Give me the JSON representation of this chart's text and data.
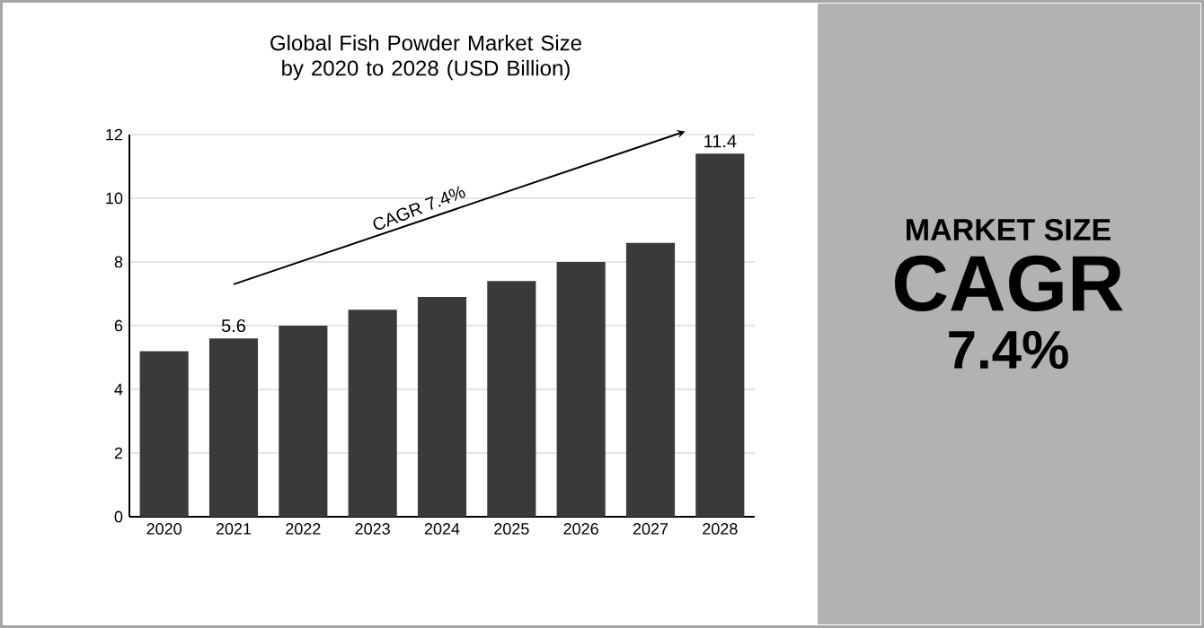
{
  "chart_data": {
    "type": "bar",
    "title": "Global Fish Powder Market Size by 2020 to 2028 (USD Billion)",
    "categories": [
      "2020",
      "2021",
      "2022",
      "2023",
      "2024",
      "2025",
      "2026",
      "2027",
      "2028"
    ],
    "values": [
      5.2,
      5.6,
      6.0,
      6.5,
      6.9,
      7.4,
      8.0,
      8.6,
      11.4
    ],
    "value_labels": [
      null,
      "5.6",
      null,
      null,
      null,
      null,
      null,
      null,
      "11.4"
    ],
    "color": "#3a3a3a",
    "ylim": [
      0,
      12
    ],
    "yticks": [
      0,
      2,
      4,
      6,
      8,
      10,
      12
    ],
    "grid": "y",
    "annotations": [
      "CAGR 7.4%",
      "MARKET SIZE",
      "CAGR",
      "7.4%"
    ]
  }
}
